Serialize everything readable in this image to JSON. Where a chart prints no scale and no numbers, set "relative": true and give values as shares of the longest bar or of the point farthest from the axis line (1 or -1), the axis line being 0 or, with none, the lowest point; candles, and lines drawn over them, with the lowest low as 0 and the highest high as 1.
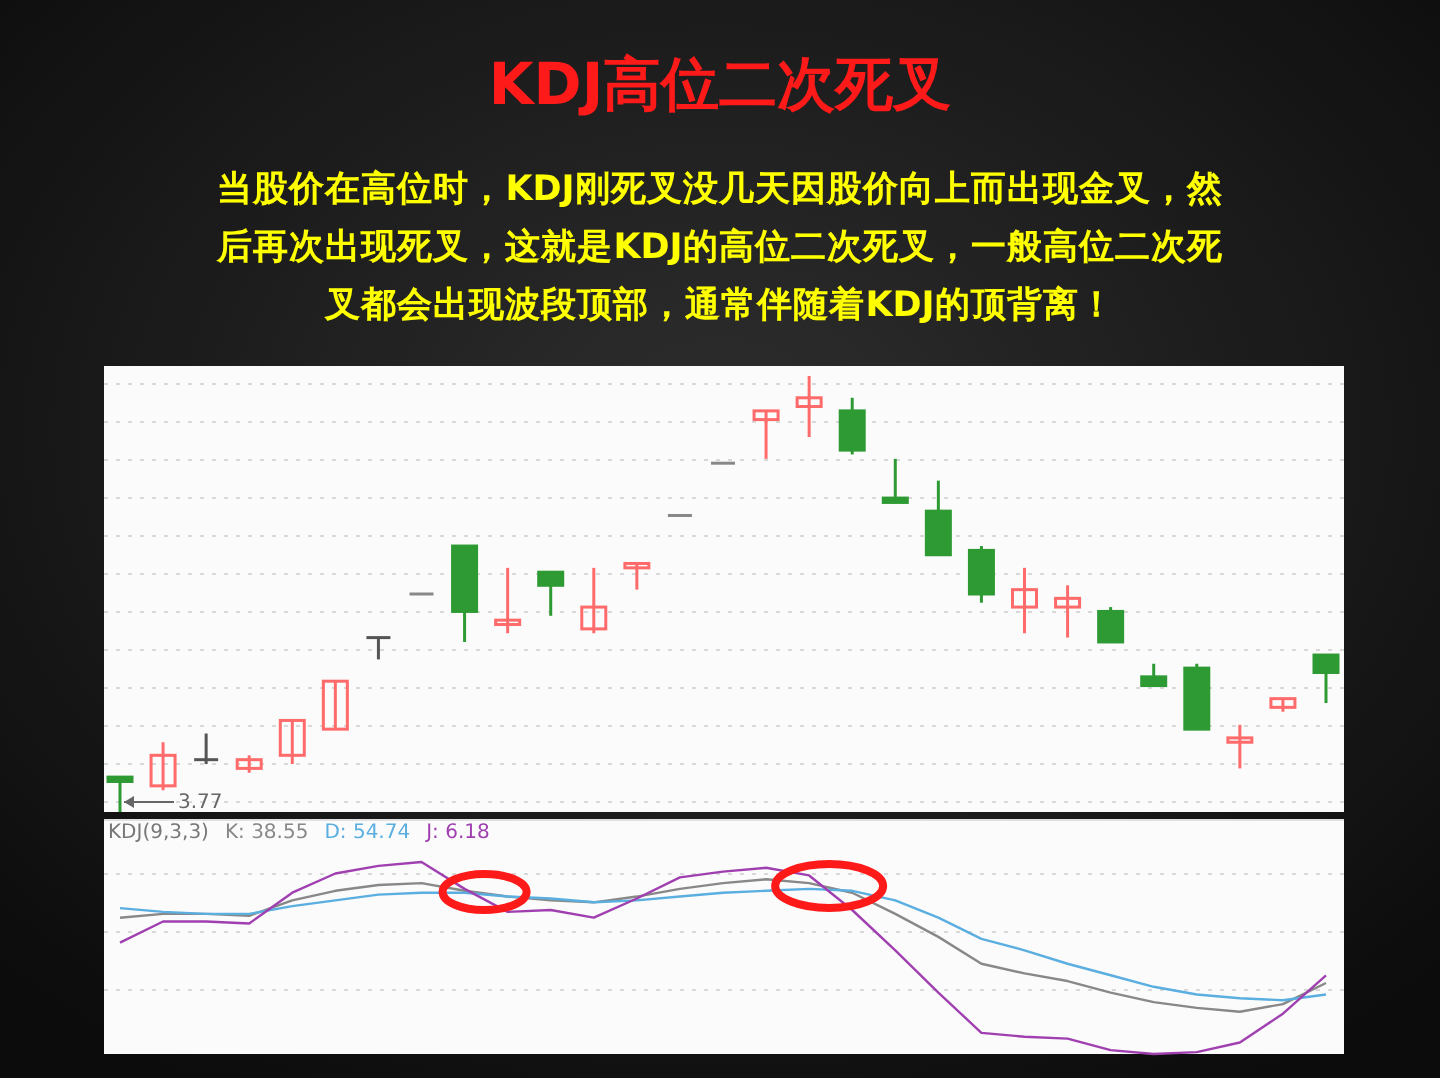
{
  "chart_data": [
    {
      "type": "candlestick",
      "title": "KDJ高位二次死叉",
      "subtitle": "当股价在高位时，KDJ刚死叉没几天因股价向上而出现金叉，然后再次出现死叉，这就是KDJ的高位二次死叉，一般高位二次死叉都会出现波段顶部，通常伴随着KDJ的顶背离！",
      "annotations": [
        "3.77"
      ],
      "relative": true,
      "grid": true,
      "categories": [
        null,
        null,
        null,
        null,
        null,
        null,
        null,
        null,
        null,
        null,
        null,
        null,
        null,
        null,
        null,
        null,
        null,
        null,
        null,
        null,
        null,
        null,
        null,
        null,
        null,
        null,
        null,
        null,
        null
      ],
      "ohlc": [
        [
          0.08,
          0.08,
          0,
          0.07
        ],
        [
          0.06,
          0.16,
          0.05,
          0.13
        ],
        [
          0.12,
          0.18,
          0.11,
          0.12
        ],
        [
          0.1,
          0.13,
          0.09,
          0.12
        ],
        [
          0.13,
          0.21,
          0.11,
          0.21
        ],
        [
          0.19,
          0.3,
          0.19,
          0.3
        ],
        [
          0.4,
          0.4,
          0.35,
          0.4
        ],
        [
          0.5,
          0.5,
          0.5,
          0.5
        ],
        [
          0.61,
          0.61,
          0.39,
          0.46
        ],
        [
          0.43,
          0.56,
          0.41,
          0.44
        ],
        [
          0.55,
          0.55,
          0.45,
          0.52
        ],
        [
          0.42,
          0.56,
          0.41,
          0.47
        ],
        [
          0.56,
          0.57,
          0.51,
          0.57
        ],
        [
          0.68,
          0.68,
          0.68,
          0.68
        ],
        [
          0.8,
          0.8,
          0.8,
          0.8
        ],
        [
          0.9,
          0.92,
          0.81,
          0.92
        ],
        [
          0.93,
          1,
          0.86,
          0.95
        ],
        [
          0.92,
          0.95,
          0.82,
          0.83
        ],
        [
          0.72,
          0.81,
          0.71,
          0.71
        ],
        [
          0.69,
          0.76,
          0.59,
          0.59
        ],
        [
          0.6,
          0.61,
          0.48,
          0.5
        ],
        [
          0.47,
          0.56,
          0.41,
          0.51
        ],
        [
          0.47,
          0.52,
          0.4,
          0.49
        ],
        [
          0.46,
          0.47,
          0.39,
          0.39
        ],
        [
          0.31,
          0.34,
          0.29,
          0.29
        ],
        [
          0.33,
          0.34,
          0.19,
          0.19
        ],
        [
          0.16,
          0.2,
          0.1,
          0.17
        ],
        [
          0.24,
          0.26,
          0.23,
          0.26
        ],
        [
          0.36,
          0.36,
          0.25,
          0.32
        ]
      ],
      "colors": [
        "#2e9a33",
        "#ff6b6b",
        "#555555",
        "#ff6b6b",
        "#ff6b6b",
        "#ff6b6b",
        "#555555",
        "#888888",
        "#2e9a33",
        "#ff6b6b",
        "#2e9a33",
        "#ff6b6b",
        "#ff6b6b",
        "#888888",
        "#888888",
        "#ff6b6b",
        "#ff6b6b",
        "#2e9a33",
        "#2e9a33",
        "#2e9a33",
        "#2e9a33",
        "#ff6b6b",
        "#ff6b6b",
        "#2e9a33",
        "#2e9a33",
        "#2e9a33",
        "#ff6b6b",
        "#ff6b6b",
        "#2e9a33"
      ]
    },
    {
      "type": "line",
      "title": "KDJ(9,3,3)",
      "relative": true,
      "grid": true,
      "legend": "top left",
      "categories": [
        null,
        null,
        null,
        null,
        null,
        null,
        null,
        null,
        null,
        null,
        null,
        null,
        null,
        null,
        null,
        null,
        null,
        null,
        null,
        null,
        null,
        null,
        null,
        null,
        null,
        null,
        null,
        null,
        null
      ],
      "series": [
        {
          "name": "K: 38.55",
          "color": "#888888",
          "values": [
            0.71,
            0.73,
            0.73,
            0.72,
            0.8,
            0.85,
            0.88,
            0.89,
            0.85,
            0.82,
            0.8,
            0.79,
            0.82,
            0.86,
            0.89,
            0.91,
            0.89,
            0.84,
            0.73,
            0.61,
            0.47,
            0.42,
            0.38,
            0.32,
            0.27,
            0.24,
            0.22,
            0.26,
            0.37
          ]
        },
        {
          "name": "D: 54.74",
          "color": "#5aaee0",
          "values": [
            0.76,
            0.74,
            0.73,
            0.73,
            0.77,
            0.8,
            0.83,
            0.84,
            0.84,
            0.82,
            0.81,
            0.79,
            0.8,
            0.82,
            0.84,
            0.85,
            0.86,
            0.85,
            0.8,
            0.71,
            0.6,
            0.54,
            0.47,
            0.41,
            0.35,
            0.31,
            0.29,
            0.28,
            0.31
          ]
        },
        {
          "name": "J: 6.18",
          "color": "#a040b0",
          "values": [
            0.58,
            0.69,
            0.69,
            0.68,
            0.84,
            0.94,
            0.98,
            1.0,
            0.86,
            0.74,
            0.75,
            0.71,
            0.81,
            0.92,
            0.95,
            0.97,
            0.93,
            0.75,
            0.54,
            0.32,
            0.11,
            0.09,
            0.08,
            0.02,
            0,
            0.01,
            0.06,
            0.21,
            0.41
          ]
        }
      ]
    }
  ]
}
